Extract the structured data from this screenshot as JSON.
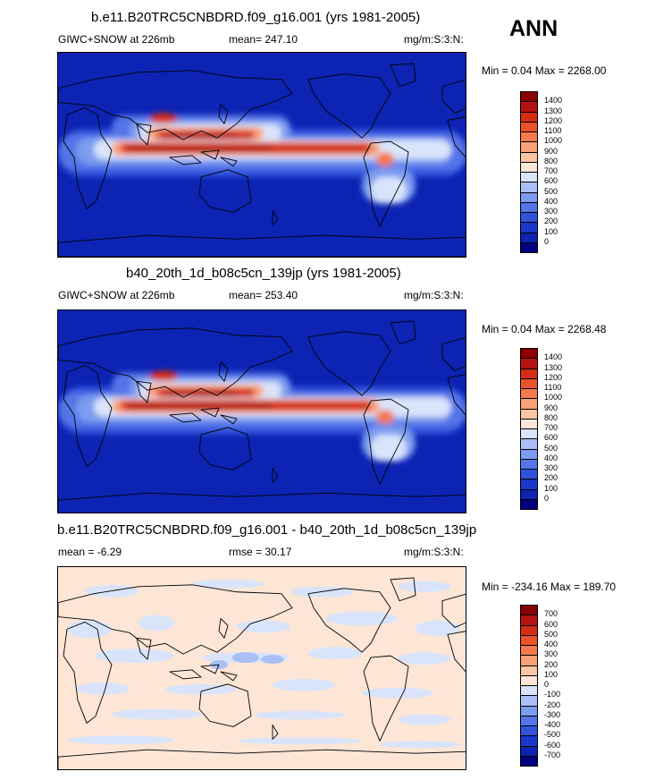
{
  "season": "ANN",
  "panels": [
    {
      "title": "b.e11.B20TRC5CNBDRD.f09_g16.001 (yrs 1981-2005)",
      "left_label": "GIWC+SNOW at 226mb",
      "mid_label": "mean= 247.10",
      "right_label": "mg/m:S:3:N:",
      "minmax": "Min =   0.04 Max = 2268.00",
      "type": "field",
      "colorbar": {
        "labels": [
          "1400",
          "1300",
          "1200",
          "1100",
          "1000",
          "900",
          "800",
          "700",
          "600",
          "500",
          "400",
          "300",
          "200",
          "100",
          "0"
        ],
        "colors": [
          "#8b0000",
          "#b5130f",
          "#d42d14",
          "#e9522b",
          "#f47a4d",
          "#f9a078",
          "#fcc6a5",
          "#fde6d6",
          "#d9e4fb",
          "#a8c0f5",
          "#7d9cf0",
          "#5475e8",
          "#3252dd",
          "#1a36cc",
          "#0c23b3",
          "#000080"
        ]
      }
    },
    {
      "title": "b40_20th_1d_b08c5cn_139jp (yrs 1981-2005)",
      "left_label": "GIWC+SNOW at 226mb",
      "mid_label": "mean= 253.40",
      "right_label": "mg/m:S:3:N:",
      "minmax": "Min =   0.04 Max = 2268.48",
      "type": "field",
      "colorbar": {
        "labels": [
          "1400",
          "1300",
          "1200",
          "1100",
          "1000",
          "900",
          "800",
          "700",
          "600",
          "500",
          "400",
          "300",
          "200",
          "100",
          "0"
        ],
        "colors": [
          "#8b0000",
          "#b5130f",
          "#d42d14",
          "#e9522b",
          "#f47a4d",
          "#f9a078",
          "#fcc6a5",
          "#fde6d6",
          "#d9e4fb",
          "#a8c0f5",
          "#7d9cf0",
          "#5475e8",
          "#3252dd",
          "#1a36cc",
          "#0c23b3",
          "#000080"
        ]
      }
    },
    {
      "title": "b.e11.B20TRC5CNBDRD.f09_g16.001 - b40_20th_1d_b08c5cn_139jp",
      "left_label": "mean =  -6.29",
      "mid_label": "rmse =  30.17",
      "right_label": "mg/m:S:3:N:",
      "minmax": "Min = -234.16 Max = 189.70",
      "type": "diff",
      "colorbar": {
        "labels": [
          "700",
          "600",
          "500",
          "400",
          "300",
          "200",
          "100",
          "0",
          "-100",
          "-200",
          "-300",
          "-400",
          "-500",
          "-600",
          "-700"
        ],
        "colors": [
          "#8b0000",
          "#b5130f",
          "#d42d14",
          "#e9522b",
          "#f47a4d",
          "#f9a078",
          "#fcc6a5",
          "#fde6d6",
          "#d9e4fb",
          "#a8c0f5",
          "#7d9cf0",
          "#5475e8",
          "#3252dd",
          "#1a36cc",
          "#0c23b3",
          "#000080"
        ]
      }
    }
  ]
}
